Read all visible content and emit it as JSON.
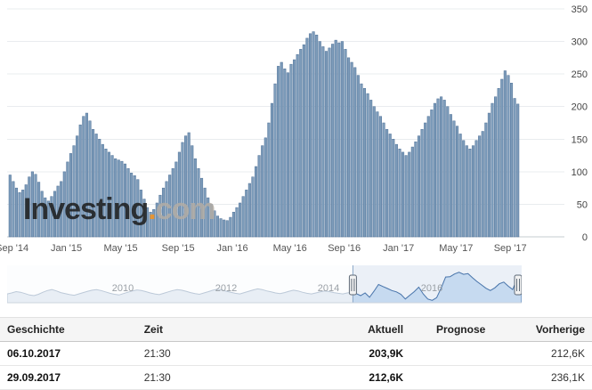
{
  "watermark": {
    "name": "Investing",
    "dot": ".",
    "com": "com"
  },
  "chart_data": {
    "type": "bar",
    "title": "",
    "xlabel": "",
    "ylabel": "",
    "unit": "K",
    "ylim": [
      0,
      350
    ],
    "grid": "horizontal",
    "y_ticks": [
      0,
      50,
      100,
      150,
      200,
      250,
      300,
      350
    ],
    "x_ticks": [
      {
        "label": "Sep '14",
        "week": 1
      },
      {
        "label": "Jan '15",
        "week": 18
      },
      {
        "label": "May '15",
        "week": 35
      },
      {
        "label": "Sep '15",
        "week": 53
      },
      {
        "label": "Jan '16",
        "week": 70
      },
      {
        "label": "May '16",
        "week": 88
      },
      {
        "label": "Sep '16",
        "week": 105
      },
      {
        "label": "Jan '17",
        "week": 122
      },
      {
        "label": "May '17",
        "week": 140
      },
      {
        "label": "Sep '17",
        "week": 157
      }
    ],
    "bar_color": "#7d9cba",
    "bar_border": "#4e7097",
    "values": [
      95,
      85,
      75,
      68,
      72,
      80,
      92,
      100,
      96,
      84,
      70,
      60,
      55,
      62,
      70,
      78,
      85,
      100,
      115,
      128,
      140,
      155,
      172,
      185,
      190,
      178,
      165,
      158,
      150,
      142,
      135,
      130,
      125,
      120,
      118,
      116,
      112,
      105,
      98,
      94,
      88,
      72,
      58,
      45,
      38,
      42,
      52,
      64,
      75,
      85,
      95,
      105,
      115,
      130,
      145,
      155,
      160,
      140,
      120,
      105,
      90,
      75,
      60,
      50,
      40,
      32,
      28,
      26,
      25,
      30,
      38,
      45,
      52,
      62,
      72,
      82,
      92,
      108,
      125,
      140,
      152,
      175,
      205,
      235,
      262,
      268,
      258,
      252,
      265,
      272,
      280,
      288,
      295,
      305,
      312,
      315,
      310,
      300,
      292,
      285,
      290,
      296,
      302,
      298,
      300,
      288,
      275,
      268,
      260,
      248,
      235,
      228,
      220,
      210,
      200,
      192,
      185,
      175,
      165,
      158,
      150,
      142,
      135,
      130,
      125,
      130,
      138,
      146,
      155,
      165,
      175,
      185,
      195,
      205,
      212,
      215,
      210,
      200,
      188,
      178,
      170,
      158,
      148,
      140,
      135,
      140,
      148,
      155,
      162,
      175,
      190,
      205,
      215,
      228,
      242,
      255,
      248,
      236.1,
      212.6,
      203.9
    ]
  },
  "navigator": {
    "selection_start_f": 0.672,
    "years": [
      {
        "label": "2010",
        "f": 0.225
      },
      {
        "label": "2012",
        "f": 0.425
      },
      {
        "label": "2014",
        "f": 0.625
      },
      {
        "label": "2016",
        "f": 0.825
      }
    ],
    "values": [
      26,
      29,
      33,
      31,
      27,
      23,
      21,
      25,
      31,
      36,
      39,
      35,
      30,
      27,
      24,
      22,
      26,
      30,
      34,
      37,
      39,
      36,
      32,
      28,
      25,
      23,
      27,
      31,
      35,
      38,
      36,
      33,
      29,
      26,
      24,
      28,
      32,
      36,
      39,
      37,
      34,
      30,
      27,
      25,
      29,
      33,
      37,
      40,
      38,
      34,
      31,
      28,
      26,
      30,
      34,
      38,
      41,
      39,
      35,
      32,
      29,
      27,
      30,
      34,
      37,
      35,
      31,
      28,
      26,
      29,
      32,
      35,
      33,
      30,
      28,
      26,
      29,
      31,
      27,
      21,
      29,
      16,
      34,
      54,
      48,
      42,
      36,
      32,
      25,
      11,
      22,
      33,
      46,
      26,
      11,
      7,
      15,
      43,
      76,
      77,
      85,
      90,
      84,
      86,
      74,
      63,
      53,
      43,
      36,
      44,
      56,
      61,
      49,
      39,
      73,
      58
    ]
  },
  "table": {
    "headers": [
      "Geschichte",
      "Zeit",
      "Aktuell",
      "Prognose",
      "Vorherige"
    ],
    "rows": [
      {
        "date": "06.10.2017",
        "time": "21:30",
        "actual": "203,9K",
        "forecast": "",
        "previous": "212,6K"
      },
      {
        "date": "29.09.2017",
        "time": "21:30",
        "actual": "212,6K",
        "forecast": "",
        "previous": "236,1K"
      }
    ]
  }
}
